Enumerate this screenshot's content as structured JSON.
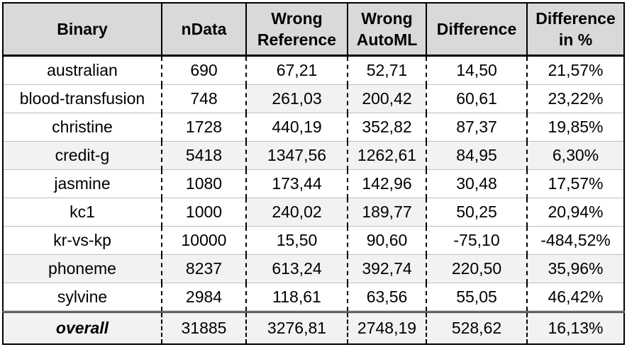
{
  "headers": {
    "binary": "Binary",
    "ndata": "nData",
    "wrong_reference": "Wrong Reference",
    "wrong_automl": "Wrong AutoML",
    "difference": "Difference",
    "difference_pct": "Difference in %"
  },
  "rows": [
    {
      "name": "australian",
      "ndata": "690",
      "wrong_reference": "67,21",
      "wrong_automl": "52,71",
      "difference": "14,50",
      "difference_pct": "21,57%"
    },
    {
      "name": "blood-transfusion",
      "ndata": "748",
      "wrong_reference": "261,03",
      "wrong_automl": "200,42",
      "difference": "60,61",
      "difference_pct": "23,22%"
    },
    {
      "name": "christine",
      "ndata": "1728",
      "wrong_reference": "440,19",
      "wrong_automl": "352,82",
      "difference": "87,37",
      "difference_pct": "19,85%"
    },
    {
      "name": "credit-g",
      "ndata": "5418",
      "wrong_reference": "1347,56",
      "wrong_automl": "1262,61",
      "difference": "84,95",
      "difference_pct": "6,30%"
    },
    {
      "name": "jasmine",
      "ndata": "1080",
      "wrong_reference": "173,44",
      "wrong_automl": "142,96",
      "difference": "30,48",
      "difference_pct": "17,57%"
    },
    {
      "name": "kc1",
      "ndata": "1000",
      "wrong_reference": "240,02",
      "wrong_automl": "189,77",
      "difference": "50,25",
      "difference_pct": "20,94%"
    },
    {
      "name": "kr-vs-kp",
      "ndata": "10000",
      "wrong_reference": "15,50",
      "wrong_automl": "90,60",
      "difference": "-75,10",
      "difference_pct": "-484,52%"
    },
    {
      "name": "phoneme",
      "ndata": "8237",
      "wrong_reference": "613,24",
      "wrong_automl": "392,74",
      "difference": "220,50",
      "difference_pct": "35,96%"
    },
    {
      "name": "sylvine",
      "ndata": "2984",
      "wrong_reference": "118,61",
      "wrong_automl": "63,56",
      "difference": "55,05",
      "difference_pct": "46,42%"
    }
  ],
  "overall": {
    "label": "overall",
    "ndata": "31885",
    "wrong_reference": "3276,81",
    "wrong_automl": "2748,19",
    "difference": "528,62",
    "difference_pct": "16,13%"
  },
  "colors": {
    "header_bg": "#d9d9d9",
    "shaded_cell_bg": "#f2f2f2"
  }
}
